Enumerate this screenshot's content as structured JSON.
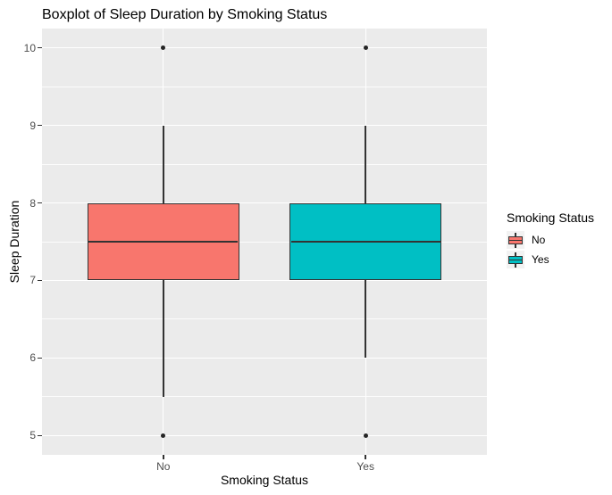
{
  "chart_data": {
    "type": "boxplot",
    "title": "Boxplot of Sleep Duration by Smoking Status",
    "xlabel": "Smoking Status",
    "ylabel": "Sleep Duration",
    "categories": [
      "No",
      "Yes"
    ],
    "y_ticks": [
      5,
      6,
      7,
      8,
      9,
      10
    ],
    "ylim": [
      4.75,
      10.25
    ],
    "grid": {
      "horizontal_major": true,
      "horizontal_minor": true,
      "vertical_at_categories": true
    },
    "series": [
      {
        "name": "No",
        "fill": "#F8766D",
        "q1": 7,
        "median": 7.5,
        "q3": 8,
        "whisker_low": 5.5,
        "whisker_high": 9,
        "outliers": [
          5,
          10
        ]
      },
      {
        "name": "Yes",
        "fill": "#00BFC4",
        "q1": 7,
        "median": 7.5,
        "q3": 8,
        "whisker_low": 6,
        "whisker_high": 9,
        "outliers": [
          5,
          10
        ]
      }
    ],
    "legend": {
      "title": "Smoking Status",
      "position": "right",
      "entries": [
        {
          "label": "No",
          "fill": "#F8766D"
        },
        {
          "label": "Yes",
          "fill": "#00BFC4"
        }
      ]
    },
    "colors": {
      "panel_bg": "#EBEBEB",
      "gridline": "#FFFFFF",
      "box_border": "#333333",
      "outlier": "#252525",
      "tick_label": "#4D4D4D",
      "text": "#000000",
      "legend_key_bg": "#F2F2F2"
    }
  }
}
